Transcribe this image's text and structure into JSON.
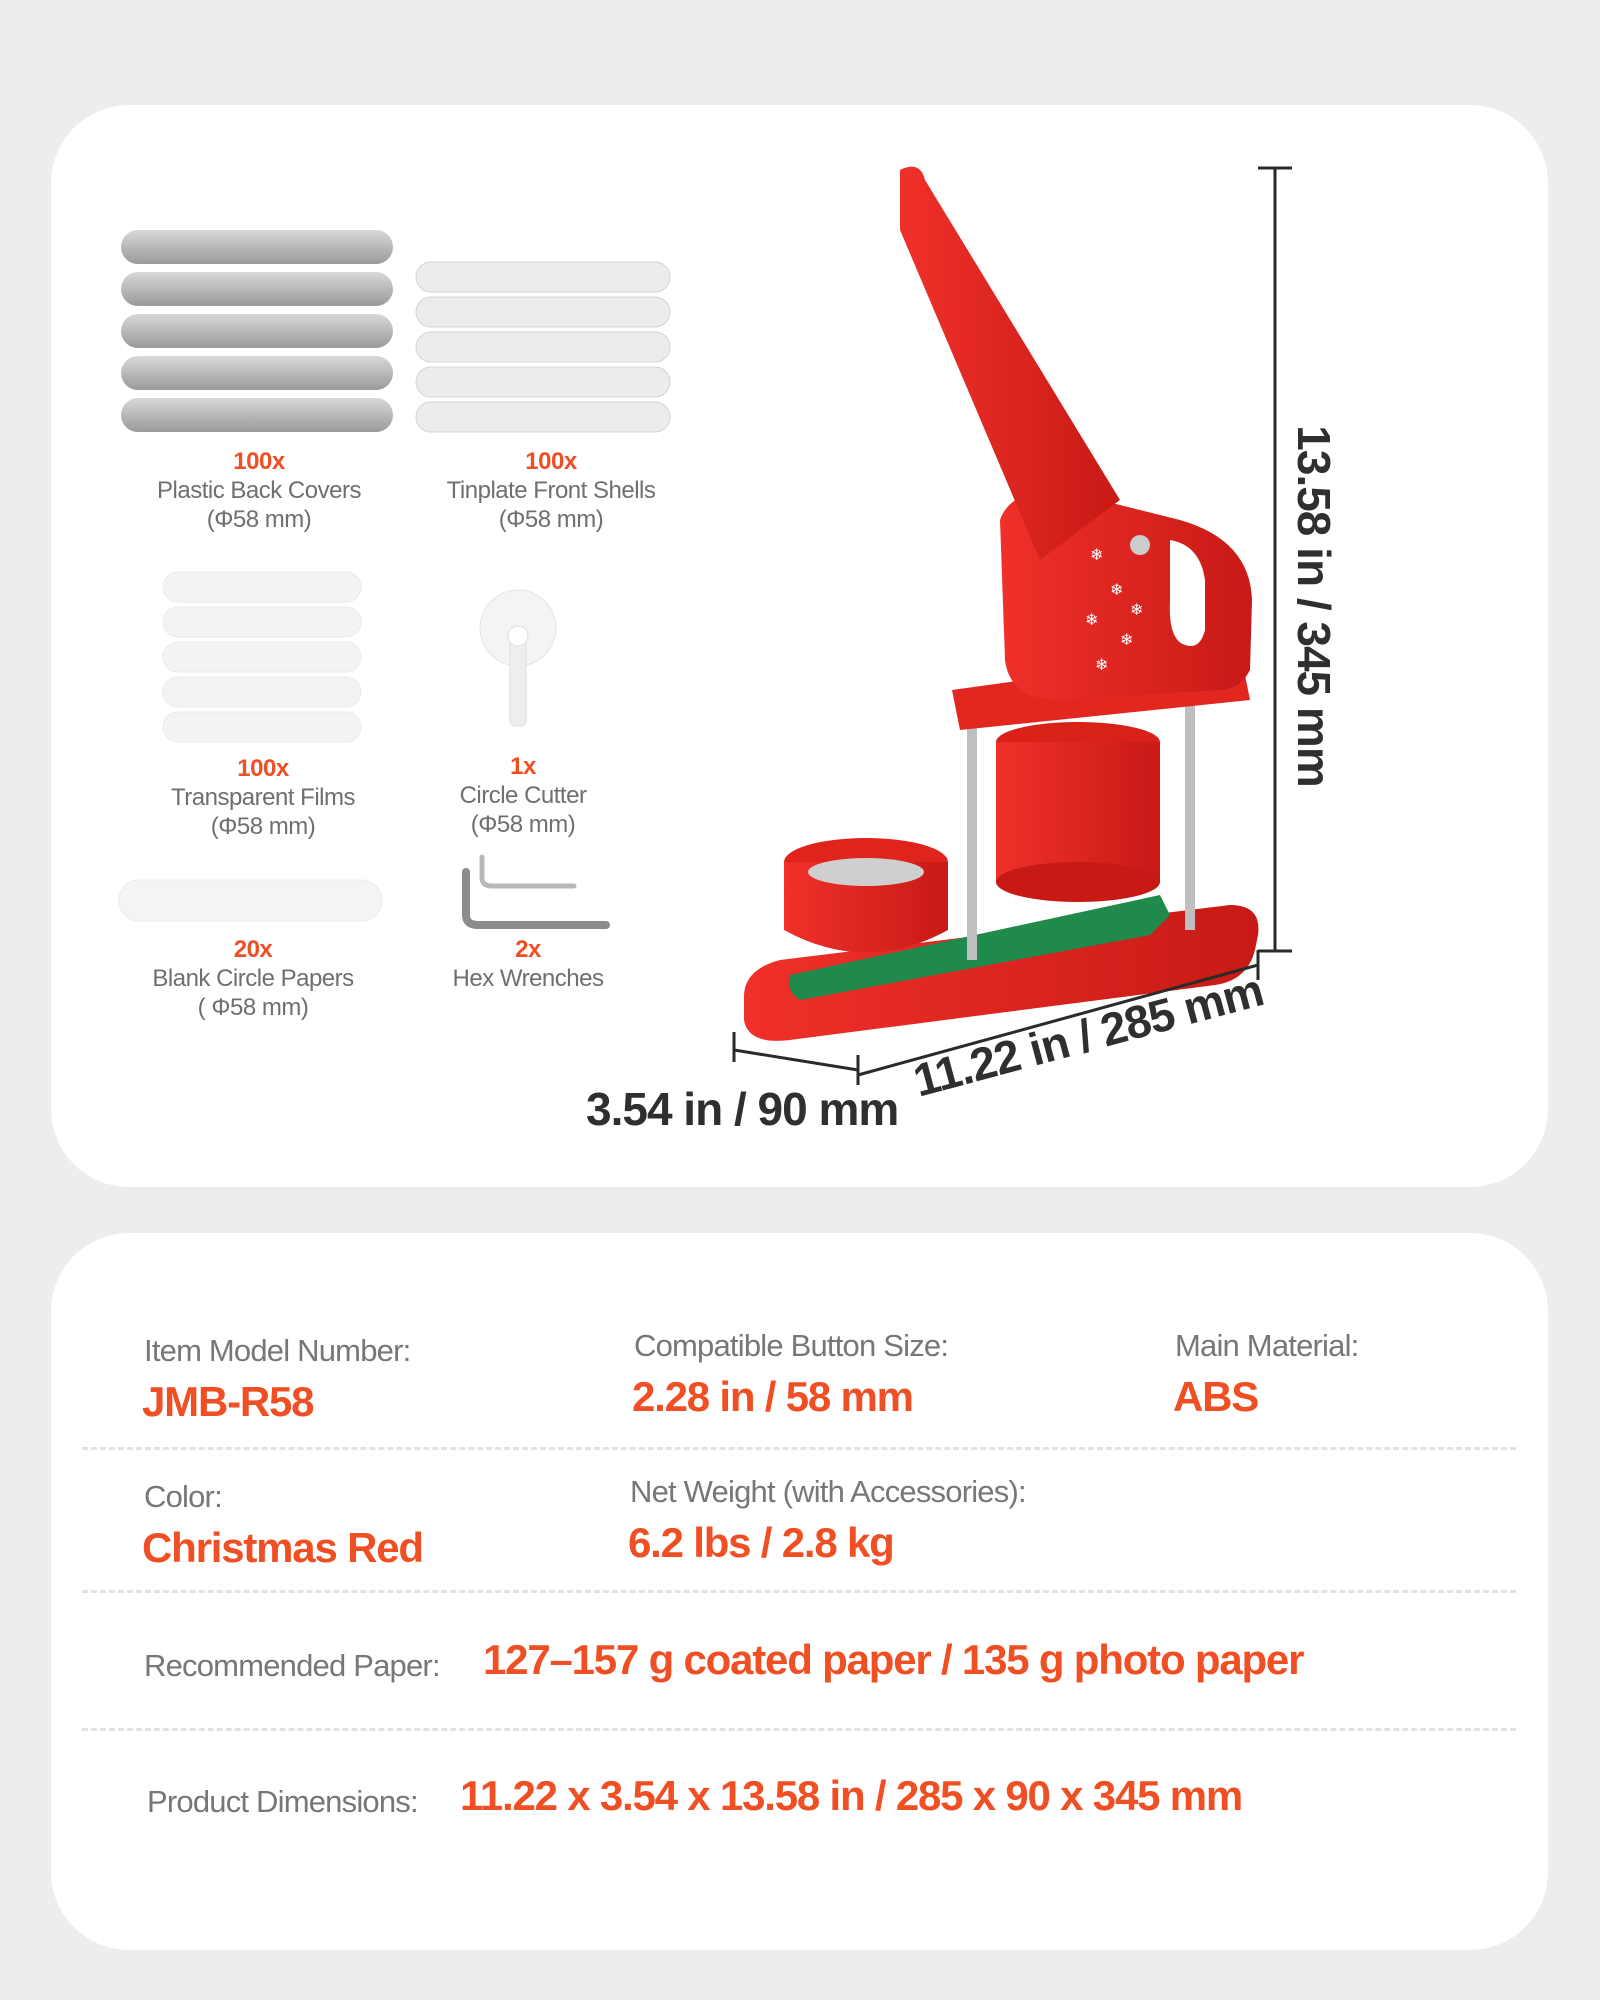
{
  "accessories": [
    {
      "qty": "100x",
      "name": "Plastic Back Covers",
      "size": "(Φ58 mm)"
    },
    {
      "qty": "100x",
      "name": "Tinplate Front Shells",
      "size": "(Φ58 mm)"
    },
    {
      "qty": "100x",
      "name": "Transparent Films",
      "size": "(Φ58 mm)"
    },
    {
      "qty": "1x",
      "name": "Circle Cutter",
      "size": "(Φ58 mm)"
    },
    {
      "qty": "20x",
      "name": "Blank Circle Papers",
      "size": "( Φ58 mm)"
    },
    {
      "qty": "2x",
      "name": "Hex Wrenches"
    }
  ],
  "dimensions": {
    "height": "13.58 in / 345 mm",
    "width": "3.54 in / 90 mm",
    "length": "11.22 in / 285 mm"
  },
  "specs": {
    "model": {
      "label": "Item Model Number:",
      "value": "JMB-R58"
    },
    "button_size": {
      "label": "Compatible Button Size:",
      "value": "2.28 in / 58 mm"
    },
    "material": {
      "label": "Main Material:",
      "value": "ABS"
    },
    "color": {
      "label": "Color:",
      "value": "Christmas Red"
    },
    "weight": {
      "label": "Net Weight (with Accessories):",
      "value": "6.2 lbs / 2.8 kg"
    },
    "paper": {
      "label": "Recommended Paper:",
      "value": "127–157 g coated paper / 135 g photo paper"
    },
    "product_dimensions": {
      "label": "Product Dimensions:",
      "value": "11.22 x 3.54 x 13.58 in / 285 x 90 x 345 mm"
    }
  },
  "colors": {
    "accent": "#f04e23",
    "machine_red": "#e8251f",
    "base_green": "#1f8a4c",
    "background": "#ededed"
  }
}
